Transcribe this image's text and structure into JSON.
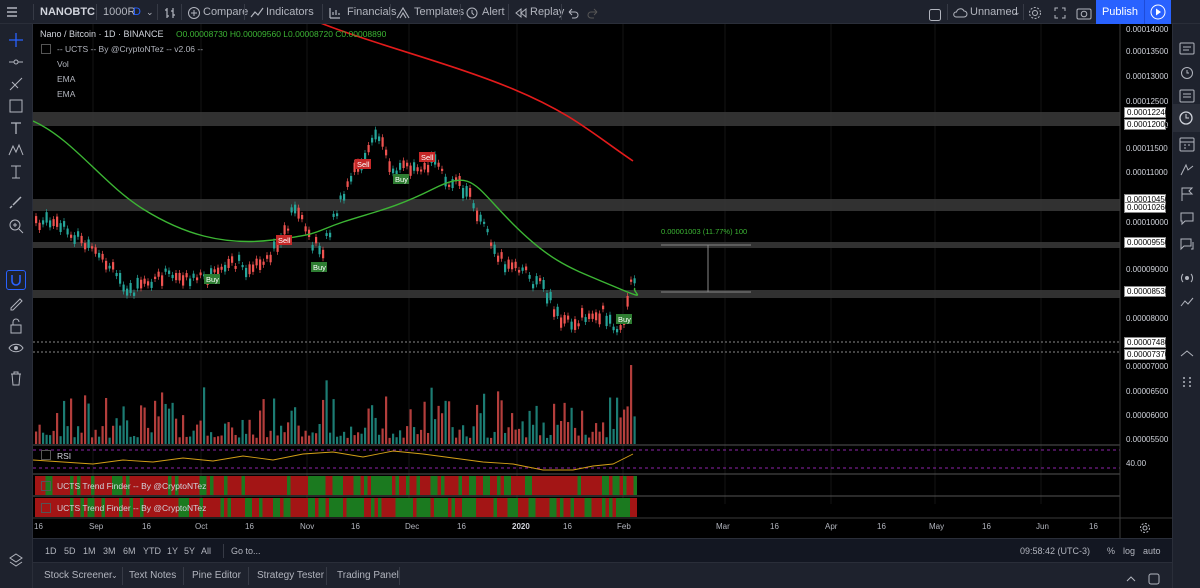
{
  "toolbar": {
    "symbol": "NANOBTC",
    "interval": "1000R",
    "interval_d": "D",
    "compare": "Compare",
    "indicators": "Indicators",
    "financials": "Financials",
    "templates": "Templates",
    "alert": "Alert",
    "replay": "Replay",
    "layout_name": "Unnamed",
    "publish": "Publish"
  },
  "legend": {
    "title": "Nano / Bitcoin · 1D · BINANCE",
    "ohlc": "O0.00008730 H0.00009560 L0.00008720 C0.00008890",
    "indicator_1": "-- UCTS -- By @CryptoNTez -- v2.06 --",
    "indicator_2": "Vol",
    "indicator_3": "EMA",
    "indicator_4": "EMA"
  },
  "price_axis": {
    "labels": [
      "0.00014000",
      "0.00013500",
      "0.00013000",
      "0.00012500",
      "0.00012000",
      "0.00011500",
      "0.00011000",
      "0.00010000",
      "0.00009000",
      "0.00008000",
      "0.00007000",
      "0.00006500",
      "0.00006000",
      "0.00005500"
    ],
    "tags": [
      "0.00012240",
      "0.00012000",
      "0.00010450",
      "0.00010260",
      "0.00009550",
      "0.00008530",
      "0.00007480",
      "0.00007370"
    ],
    "rsi_label": "40.00"
  },
  "time_axis": {
    "labels": [
      "16",
      "Sep",
      "16",
      "Oct",
      "16",
      "Nov",
      "16",
      "Dec",
      "16",
      "2020",
      "16",
      "Feb",
      "Mar",
      "16",
      "Apr",
      "16",
      "May",
      "16",
      "Jun",
      "16"
    ]
  },
  "annotations": {
    "measure": "0.00001003 (11.77%) 100",
    "signals": [
      "Sell",
      "Sell",
      "Buy",
      "Sell",
      "Buy",
      "Buy",
      "Buy"
    ]
  },
  "panes": {
    "rsi": "RSI",
    "trend_1": "UCTS Trend Finder -- By @CryptoNTez",
    "trend_2": "UCTS Trend Finder -- By @CryptoNTez"
  },
  "range_bar": {
    "ranges": [
      "1D",
      "5D",
      "1M",
      "3M",
      "6M",
      "YTD",
      "1Y",
      "5Y",
      "All"
    ],
    "goto": "Go to...",
    "clock": "09:58:42 (UTC-3)",
    "percent": "%",
    "log": "log",
    "auto": "auto"
  },
  "panel_tabs": [
    "Stock Screener",
    "Text Notes",
    "Pine Editor",
    "Strategy Tester",
    "Trading Panel"
  ],
  "colors": {
    "background": "#000000",
    "up": "#26a69a",
    "down": "#ef5350",
    "ema_fast": "#3cb534",
    "ema_slow": "#e31b1b",
    "accent": "#2962ff"
  }
}
